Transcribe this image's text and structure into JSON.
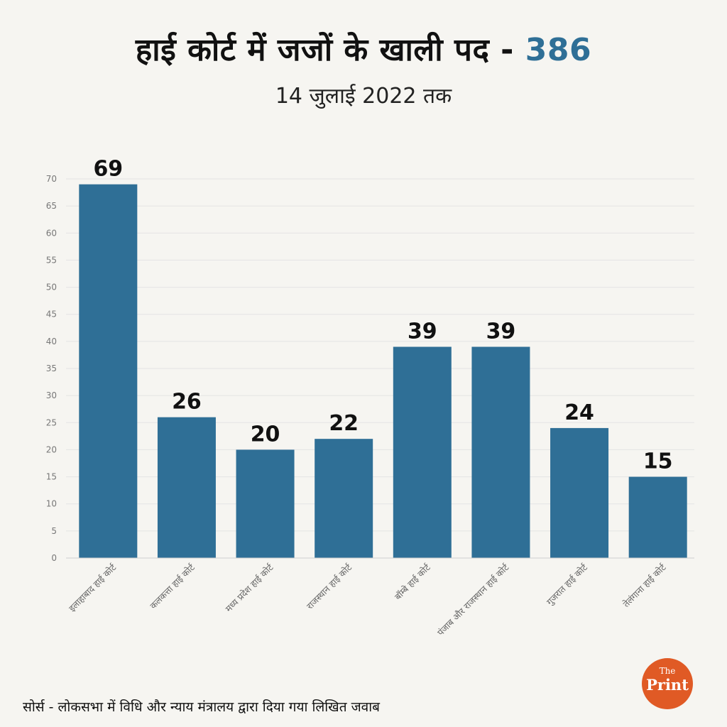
{
  "header": {
    "title": "हाई कोर्ट में जजों के खाली पद -",
    "title_total": "386",
    "subtitle": "14 जुलाई 2022 तक"
  },
  "footer": {
    "source": "सोर्स - लोकसभा में विधि और न्याय मंत्रालय द्वारा दिया गया लिखित जवाब"
  },
  "logo": {
    "line1": "The",
    "line2": "Print",
    "color": "#e05a25"
  },
  "colors": {
    "bar": "#2f6f96",
    "accent": "#2f6f96",
    "grid": "#e4e4e4"
  },
  "chart_data": {
    "type": "bar",
    "categories": [
      "इलाहाबाद हाई कोर्ट",
      "कलकत्ता हाई कोर्ट",
      "मध्य प्रदेश हाई कोर्ट",
      "राजस्थान हाई कोर्ट",
      "बॉम्बे हाई कोर्ट",
      "पंजाब और राजस्थान हाई कोर्ट",
      "गुजरात हाई कोर्ट",
      "तेलंगाना हाई कोर्ट"
    ],
    "values": [
      69,
      26,
      20,
      22,
      39,
      39,
      24,
      15
    ],
    "ylim": [
      0,
      70
    ],
    "yticks": [
      0,
      5,
      10,
      15,
      20,
      25,
      30,
      35,
      40,
      45,
      50,
      55,
      60,
      65,
      70
    ],
    "grid": true,
    "data_labels": true
  }
}
